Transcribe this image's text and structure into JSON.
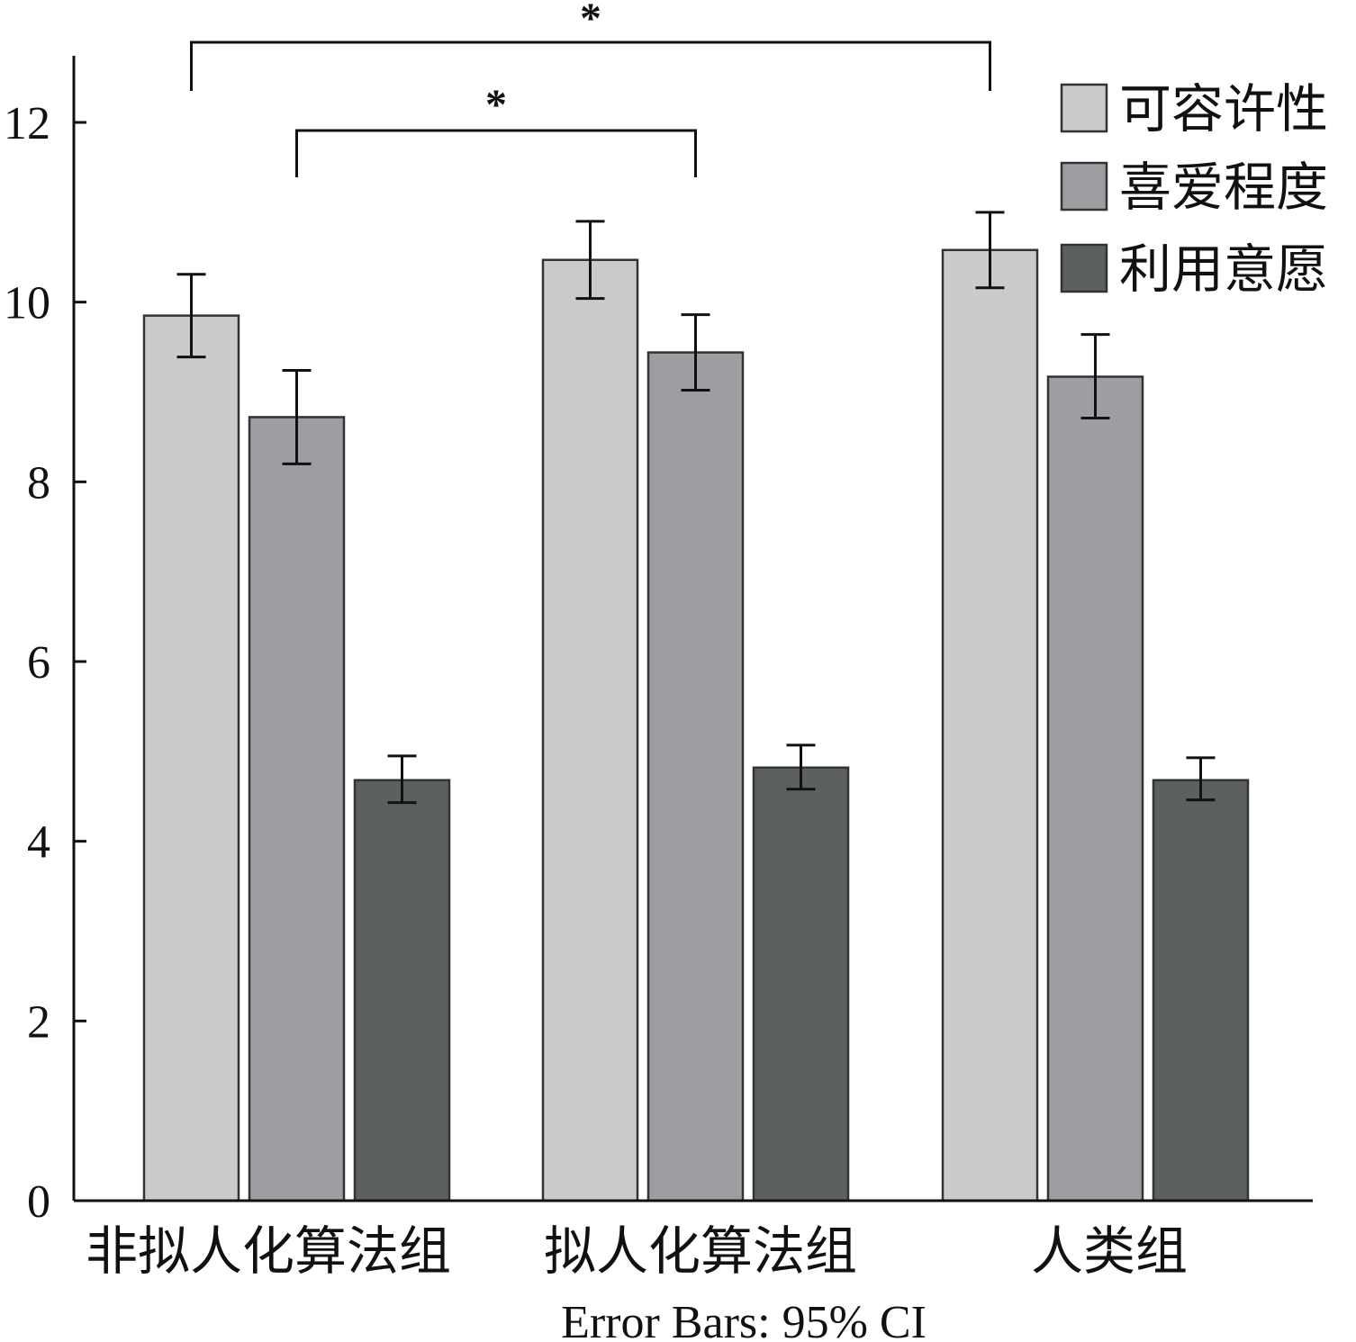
{
  "chart_data": {
    "type": "bar",
    "categories": [
      "非拟人化算法组",
      "拟人化算法组",
      "人类组"
    ],
    "series": [
      {
        "name": "可容许性",
        "values": [
          9.85,
          10.47,
          10.58
        ],
        "ci": [
          [
            9.39,
            10.31
          ],
          [
            10.04,
            10.9
          ],
          [
            10.16,
            11.0
          ]
        ],
        "color": "#cbcbcd"
      },
      {
        "name": "喜爱程度",
        "values": [
          8.72,
          9.44,
          9.17
        ],
        "ci": [
          [
            8.2,
            9.24
          ],
          [
            9.02,
            9.86
          ],
          [
            8.71,
            9.64
          ]
        ],
        "color": "#9e9da2"
      },
      {
        "name": "利用意愿",
        "values": [
          4.68,
          4.82,
          4.68
        ],
        "ci": [
          [
            4.43,
            4.95
          ],
          [
            4.58,
            5.07
          ],
          [
            4.46,
            4.93
          ]
        ],
        "color": "#5c605e"
      }
    ],
    "ylim": [
      0,
      12.7
    ],
    "yticks": [
      0,
      2,
      4,
      6,
      8,
      10,
      12
    ],
    "note": "Error Bars: 95% CI",
    "legend_position": "top-right",
    "significance": [
      {
        "from": [
          0,
          0
        ],
        "to": [
          2,
          0
        ],
        "label": "*"
      },
      {
        "from": [
          0,
          1
        ],
        "to": [
          1,
          1
        ],
        "label": "*"
      }
    ]
  }
}
